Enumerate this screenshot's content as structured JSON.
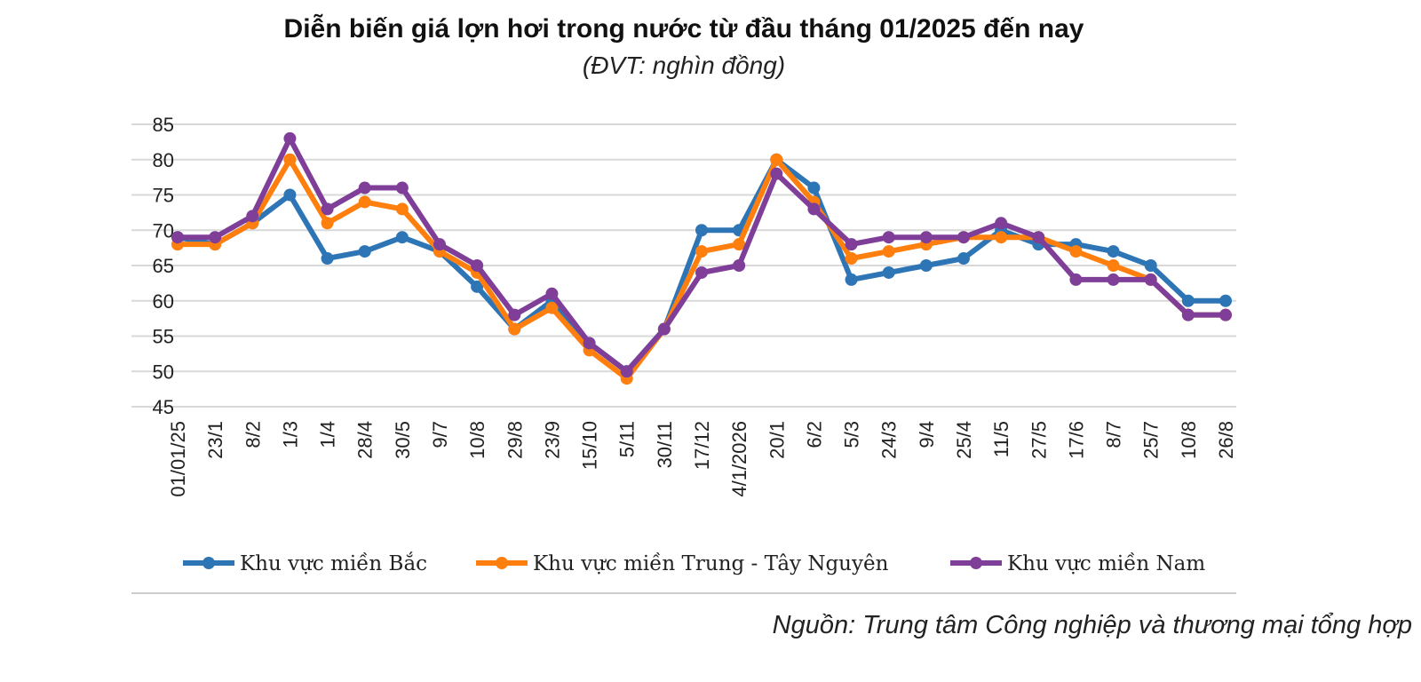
{
  "title": "Diễn biến giá lợn hơi trong nước từ đầu tháng 01/2025 đến nay",
  "subtitle": "(ĐVT: nghìn đồng)",
  "source": "Nguồn: Trung tâm Công nghiệp và thương mại tổng hợp",
  "chart_data": {
    "type": "line",
    "title": "Diễn biến giá lợn hơi trong nước từ đầu tháng 01/2025 đến nay",
    "subtitle": "(ĐVT: nghìn đồng)",
    "grid": true,
    "legend_position": "bottom",
    "ylim": [
      45,
      85
    ],
    "yticks": [
      45,
      50,
      55,
      60,
      65,
      70,
      75,
      80,
      85
    ],
    "ytick_labels": [
      "45",
      "50",
      "55",
      "60",
      "65",
      "70",
      "75",
      "80",
      "85"
    ],
    "categories": [
      "01/01/25",
      "23/1",
      "8/2",
      "1/3",
      "1/4",
      "28/4",
      "30/5",
      "9/7",
      "10/8",
      "29/8",
      "23/9",
      "15/10",
      "5/11",
      "30/11",
      "17/12",
      "4/1/2026",
      "20/1",
      "6/2",
      "5/3",
      "24/3",
      "9/4",
      "25/4",
      "11/5",
      "27/5",
      "17/6",
      "8/7",
      "25/7",
      "10/8",
      "26/8"
    ],
    "series": [
      {
        "name": "Khu vực miền Bắc",
        "color": "#2E75B6",
        "values": [
          69,
          68,
          71,
          75,
          66,
          67,
          69,
          67,
          62,
          56,
          60,
          54,
          50,
          56,
          70,
          70,
          80,
          76,
          63,
          64,
          65,
          66,
          70,
          68,
          68,
          67,
          65,
          60,
          60
        ]
      },
      {
        "name": "Khu vực miền Trung - Tây Nguyên",
        "color": "#FF7F0E",
        "values": [
          68,
          68,
          71,
          80,
          71,
          74,
          73,
          67,
          64,
          56,
          59,
          53,
          49,
          56,
          67,
          68,
          80,
          74,
          66,
          67,
          68,
          69,
          69,
          69,
          67,
          65,
          63,
          58,
          58
        ]
      },
      {
        "name": "Khu vực miền Nam",
        "color": "#7F3F98",
        "values": [
          69,
          69,
          72,
          83,
          73,
          76,
          76,
          68,
          65,
          58,
          61,
          54,
          50,
          56,
          64,
          65,
          78,
          73,
          68,
          69,
          69,
          69,
          71,
          69,
          63,
          63,
          63,
          58,
          58
        ]
      }
    ]
  }
}
